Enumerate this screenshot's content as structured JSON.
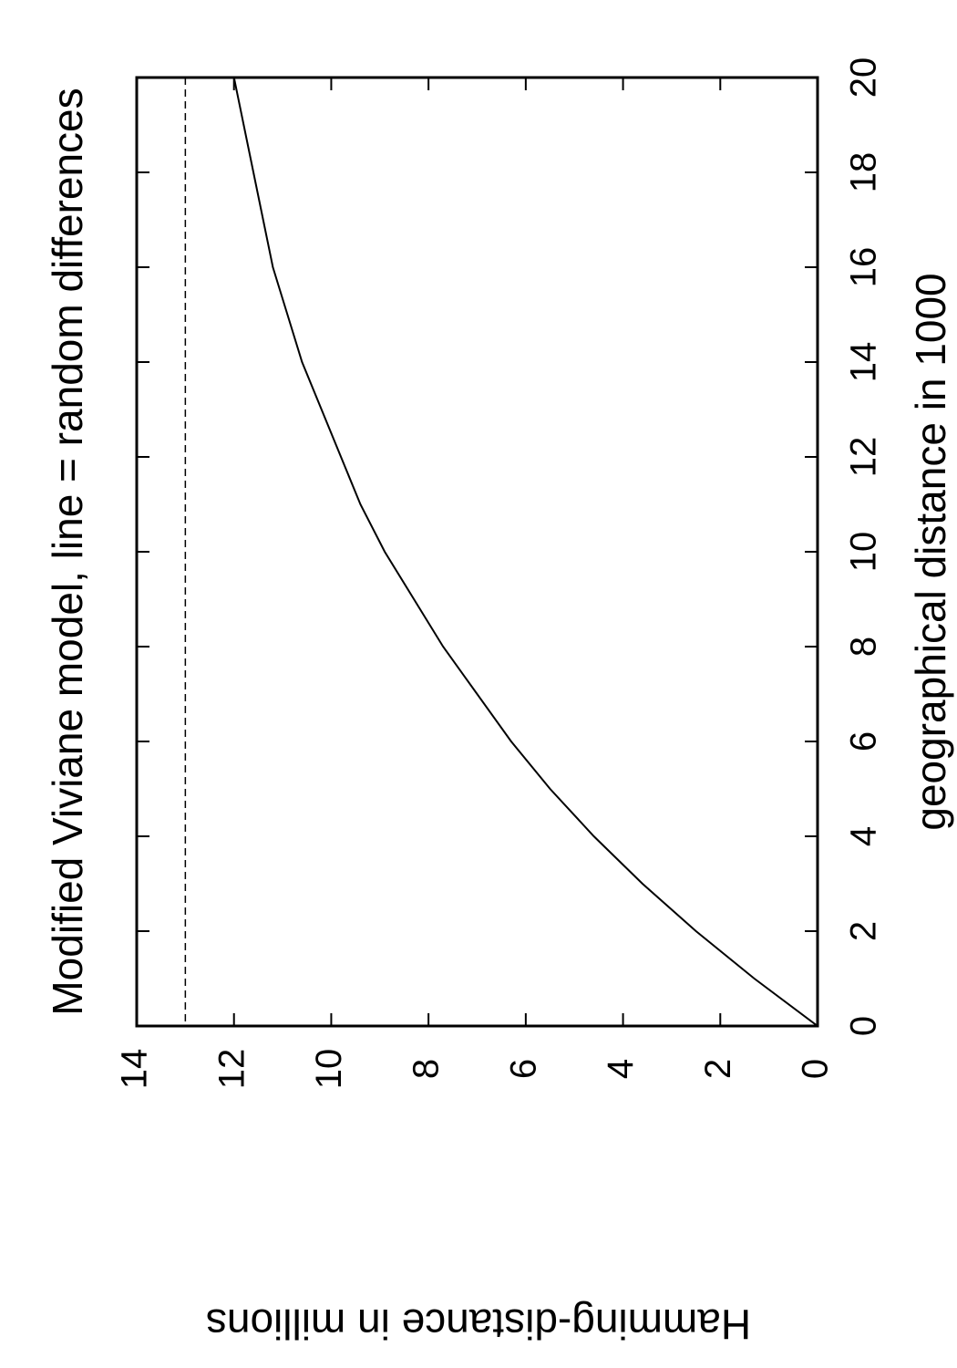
{
  "chart_data": {
    "type": "line",
    "title": "Modified Viviane model, line = random differences",
    "x_label": "geographical distance in 1000",
    "y_label": "Hamming-distance in millions",
    "x": [
      0,
      1,
      2,
      3,
      4,
      5,
      6,
      7,
      8,
      9,
      10,
      11,
      12,
      13,
      14,
      15,
      16,
      17,
      18,
      19,
      20
    ],
    "series": [
      {
        "color": "#000000",
        "values": [
          0,
          1.3,
          2.5,
          3.6,
          4.6,
          5.5,
          6.3,
          7.0,
          7.7,
          8.3,
          8.9,
          9.4,
          9.8,
          10.2,
          10.6,
          10.9,
          11.2,
          11.4,
          11.6,
          11.8,
          12.0
        ]
      }
    ],
    "hline": {
      "value": 13,
      "color": "#000000",
      "style": "dashed"
    },
    "xlim": [
      0,
      20
    ],
    "xticks": [
      0,
      2,
      4,
      6,
      8,
      10,
      12,
      14,
      16,
      18,
      20
    ],
    "ylim": [
      0,
      14
    ],
    "yticks": [
      0,
      2,
      4,
      6,
      8,
      10,
      12,
      14
    ],
    "rotation": -90,
    "grid": false
  }
}
